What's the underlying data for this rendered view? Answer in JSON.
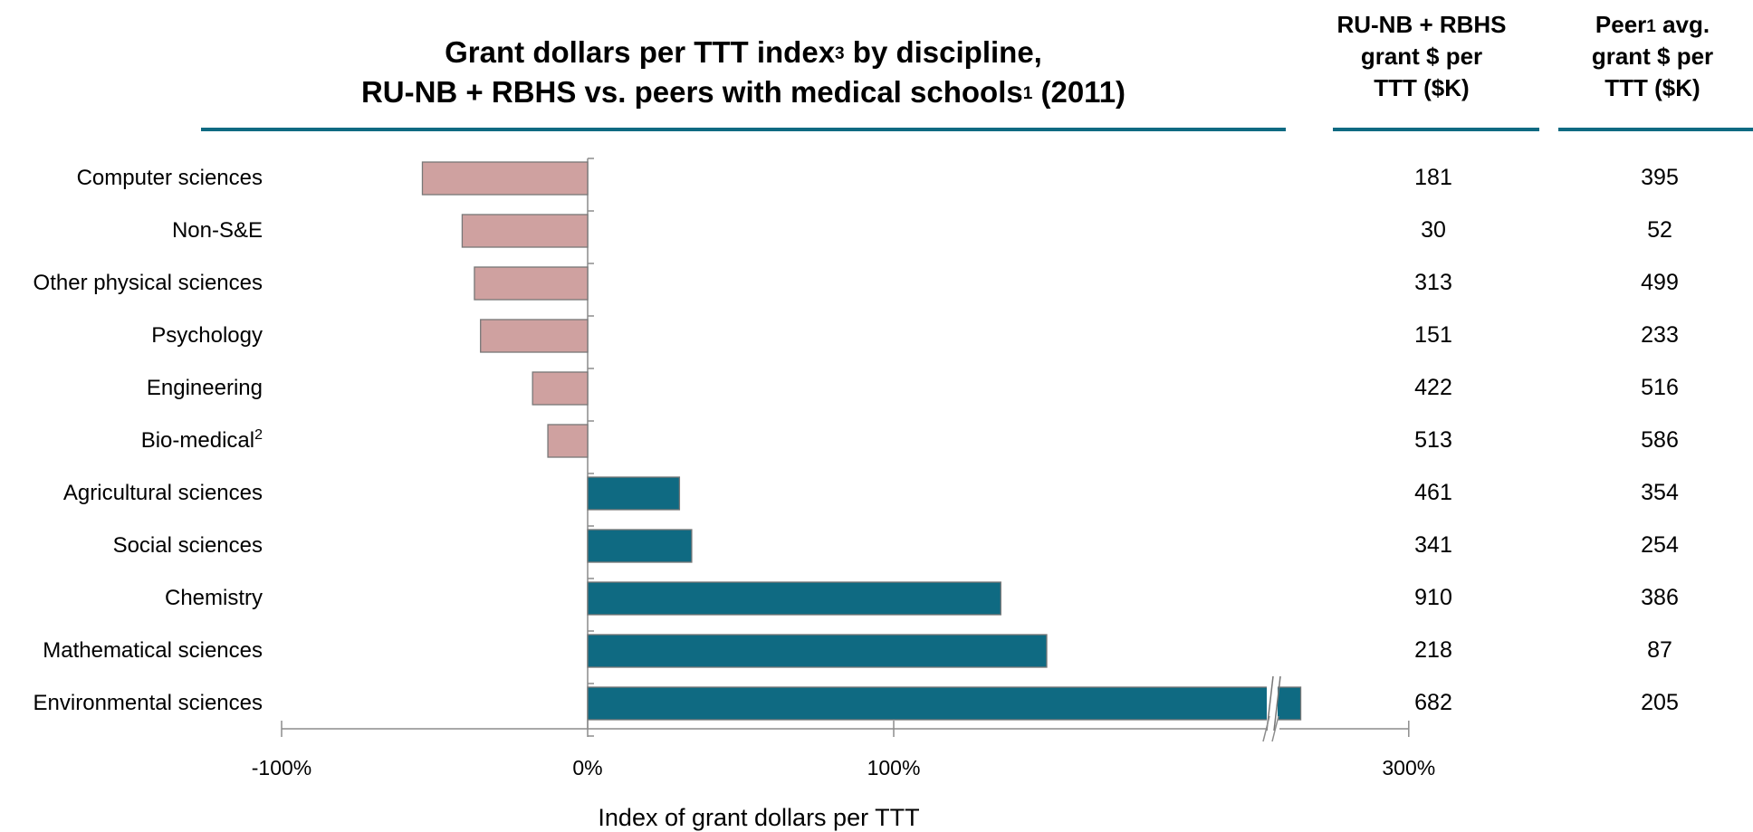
{
  "title": {
    "line1_text": "Grant dollars per TTT  index",
    "line1_sup": "3",
    "line1_tail": "  by discipline,",
    "line2_text": "RU-NB + RBHS vs. peers with medical schools",
    "line2_sup": "1",
    "line2_tail": " (2011)"
  },
  "columns": {
    "rutgers_header": [
      "RU-NB + RBHS",
      "grant $ per",
      "TTT ($K)"
    ],
    "peer_header_word": "Peer",
    "peer_header_sup": "1",
    "peer_header_tail": "  avg.",
    "peer_header_rest": [
      "grant $ per",
      "TTT ($K)"
    ]
  },
  "colors": {
    "negative_bar": "#cfa1a0",
    "positive_bar": "#0f6a82",
    "rule": "#0f6a82",
    "axis": "#8c8c8c"
  },
  "chart_data": {
    "type": "bar",
    "orientation": "horizontal",
    "categories": [
      "Computer sciences",
      "Non-S&E",
      "Other physical sciences",
      "Psychology",
      "Engineering",
      "Bio-medical",
      "Agricultural sciences",
      "Social sciences",
      "Chemistry",
      "Mathematical sciences",
      "Environmental sciences"
    ],
    "category_superscripts": [
      "",
      "",
      "",
      "",
      "",
      "2",
      "",
      "",
      "",
      "",
      ""
    ],
    "values": [
      -54,
      -41,
      -37,
      -35,
      -18,
      -13,
      30,
      34,
      135,
      150,
      233
    ],
    "xlabel": "Index of grant dollars per TTT",
    "ylabel": "",
    "x_ticks": [
      "-100%",
      "0%",
      "100%",
      "300%"
    ],
    "x_tick_values": [
      -100,
      0,
      100,
      300
    ],
    "xlim": [
      -100,
      300
    ],
    "axis_break": {
      "from": 200,
      "to": 200
    },
    "grid": false,
    "table": {
      "rutgers_grant_k": [
        "181",
        "30",
        "313",
        "151",
        "422",
        "513",
        "461",
        "341",
        "910",
        "218",
        "682"
      ],
      "peer_avg_grant_k": [
        "395",
        "52",
        "499",
        "233",
        "516",
        "586",
        "354",
        "254",
        "386",
        "87",
        "205"
      ]
    }
  }
}
